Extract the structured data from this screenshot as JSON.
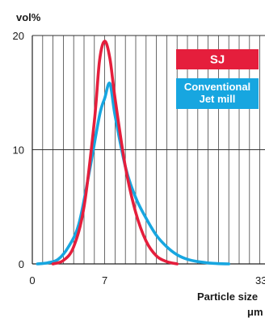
{
  "chart_data": {
    "type": "line",
    "y_unit": "vol%",
    "xlabel": "Particle size",
    "xlabel_unit": "μm",
    "ylim": [
      0,
      20
    ],
    "y_ticks": [
      "0",
      "10",
      "20"
    ],
    "x_ticks": [
      {
        "value": 0,
        "label": "0"
      },
      {
        "value": 7,
        "label": "7"
      },
      {
        "value": 33,
        "label": "33"
      }
    ],
    "grid": true,
    "legend_position": "top-right",
    "series": [
      {
        "name": "SJ",
        "color": "#e51e3c",
        "x": [
          2.0,
          3.0,
          4.0,
          5.0,
          6.0,
          6.5,
          7.0,
          7.5,
          8.0,
          9.0,
          10.0,
          11.0,
          12.0,
          13.0,
          14.0
        ],
        "y": [
          0,
          0.3,
          1.5,
          5.0,
          12.5,
          17.8,
          19.5,
          18.0,
          14.5,
          8.5,
          4.5,
          2.0,
          0.7,
          0.2,
          0
        ]
      },
      {
        "name": "Conventional Jet mill",
        "color": "#17a6e0",
        "x": [
          0.5,
          1.5,
          2.5,
          3.5,
          4.5,
          5.5,
          6.5,
          7.0,
          7.5,
          8.0,
          9.0,
          10.0,
          11.0,
          12.0,
          13.0,
          14.0,
          15.0,
          16.0,
          17.5,
          19.0
        ],
        "y": [
          0,
          0.1,
          0.4,
          1.5,
          3.5,
          8.0,
          13.0,
          14.5,
          15.8,
          13.0,
          8.5,
          5.8,
          4.0,
          2.5,
          1.5,
          0.8,
          0.4,
          0.2,
          0.05,
          0
        ]
      }
    ]
  }
}
